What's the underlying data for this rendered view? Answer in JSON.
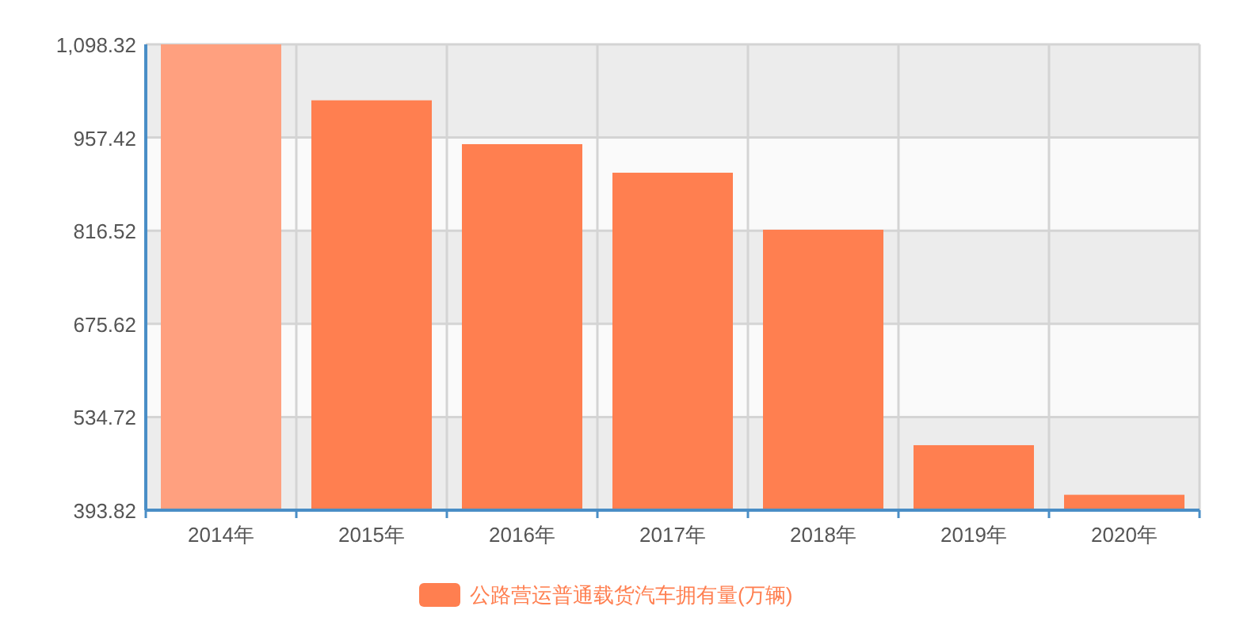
{
  "chart_data": {
    "type": "bar",
    "categories": [
      "2014年",
      "2015年",
      "2016年",
      "2017年",
      "2018年",
      "2019年",
      "2020年"
    ],
    "series": [
      {
        "name": "公路营运普通载货汽车拥有量(万辆)",
        "color": "#ff7f50",
        "colors": [
          "#ffa07f",
          "#ff7f50",
          "#ff7f50",
          "#ff7f50",
          "#ff7f50",
          "#ff7f50",
          "#ff7f50"
        ],
        "values": [
          1098.32,
          1013.7,
          947.4,
          904.2,
          818.0,
          492.1,
          417.1
        ]
      }
    ],
    "ylim": [
      393.82,
      1098.32
    ],
    "yticks": [
      393.82,
      534.72,
      675.62,
      816.52,
      957.42,
      {
        "value": 1098.32,
        "label": "1,098.32"
      }
    ],
    "grid": true,
    "legend": "bottom"
  }
}
